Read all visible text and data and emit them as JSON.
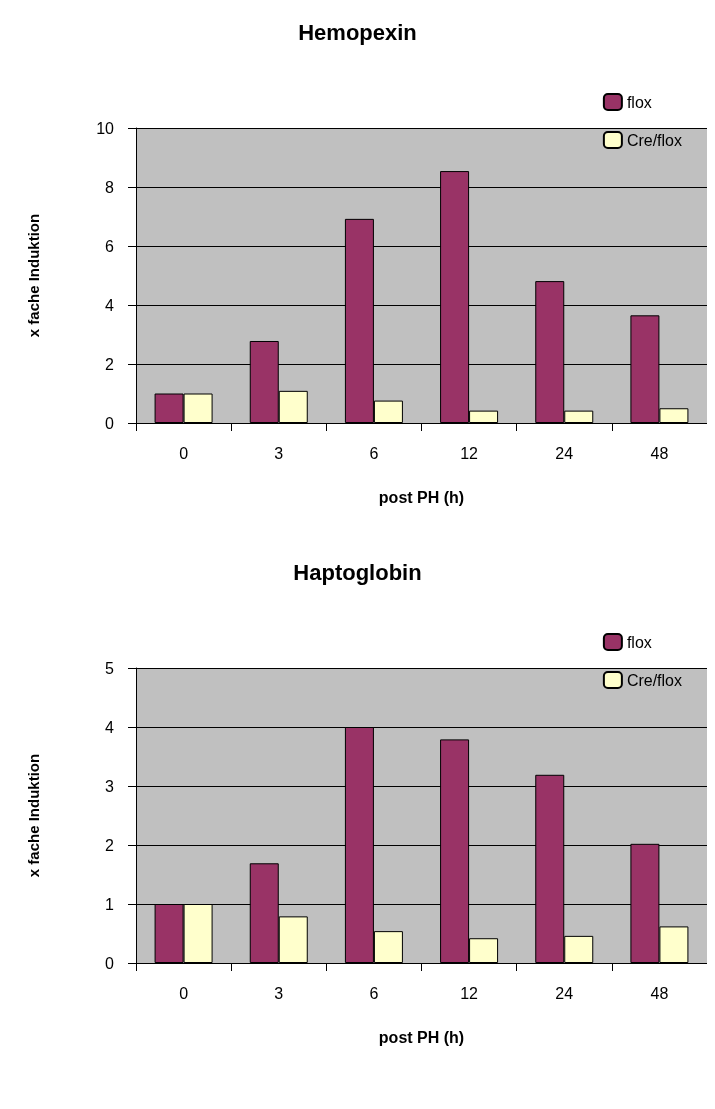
{
  "chart_data": [
    {
      "type": "bar",
      "title": "Hemopexin",
      "xlabel": "post PH (h)",
      "ylabel": "x fache Induktion",
      "categories": [
        "0",
        "3",
        "6",
        "12",
        "24",
        "48"
      ],
      "series": [
        {
          "name": "flox",
          "color": "#993366",
          "values": [
            1.0,
            2.78,
            6.92,
            8.54,
            4.81,
            3.65
          ]
        },
        {
          "name": "Cre/flox",
          "color": "#ffffcc",
          "values": [
            1.0,
            1.09,
            0.76,
            0.42,
            0.42,
            0.5
          ]
        }
      ],
      "ylim": [
        0,
        10
      ],
      "yticks": [
        0,
        2,
        4,
        6,
        8,
        10
      ],
      "grid": "y",
      "legend": "top right"
    },
    {
      "type": "bar",
      "title": "Haptoglobin",
      "xlabel": "post PH (h)",
      "ylabel": "x fache Induktion",
      "categories": [
        "0",
        "3",
        "6",
        "12",
        "24",
        "48"
      ],
      "series": [
        {
          "name": "flox",
          "color": "#993366",
          "values": [
            1.0,
            1.69,
            4.0,
            3.79,
            3.19,
            2.02
          ]
        },
        {
          "name": "Cre/flox",
          "color": "#ffffcc",
          "values": [
            1.0,
            0.79,
            0.54,
            0.42,
            0.46,
            0.62
          ]
        }
      ],
      "ylim": [
        0,
        5
      ],
      "yticks": [
        0,
        1,
        2,
        3,
        4,
        5
      ],
      "grid": "y",
      "legend": "top right"
    }
  ]
}
